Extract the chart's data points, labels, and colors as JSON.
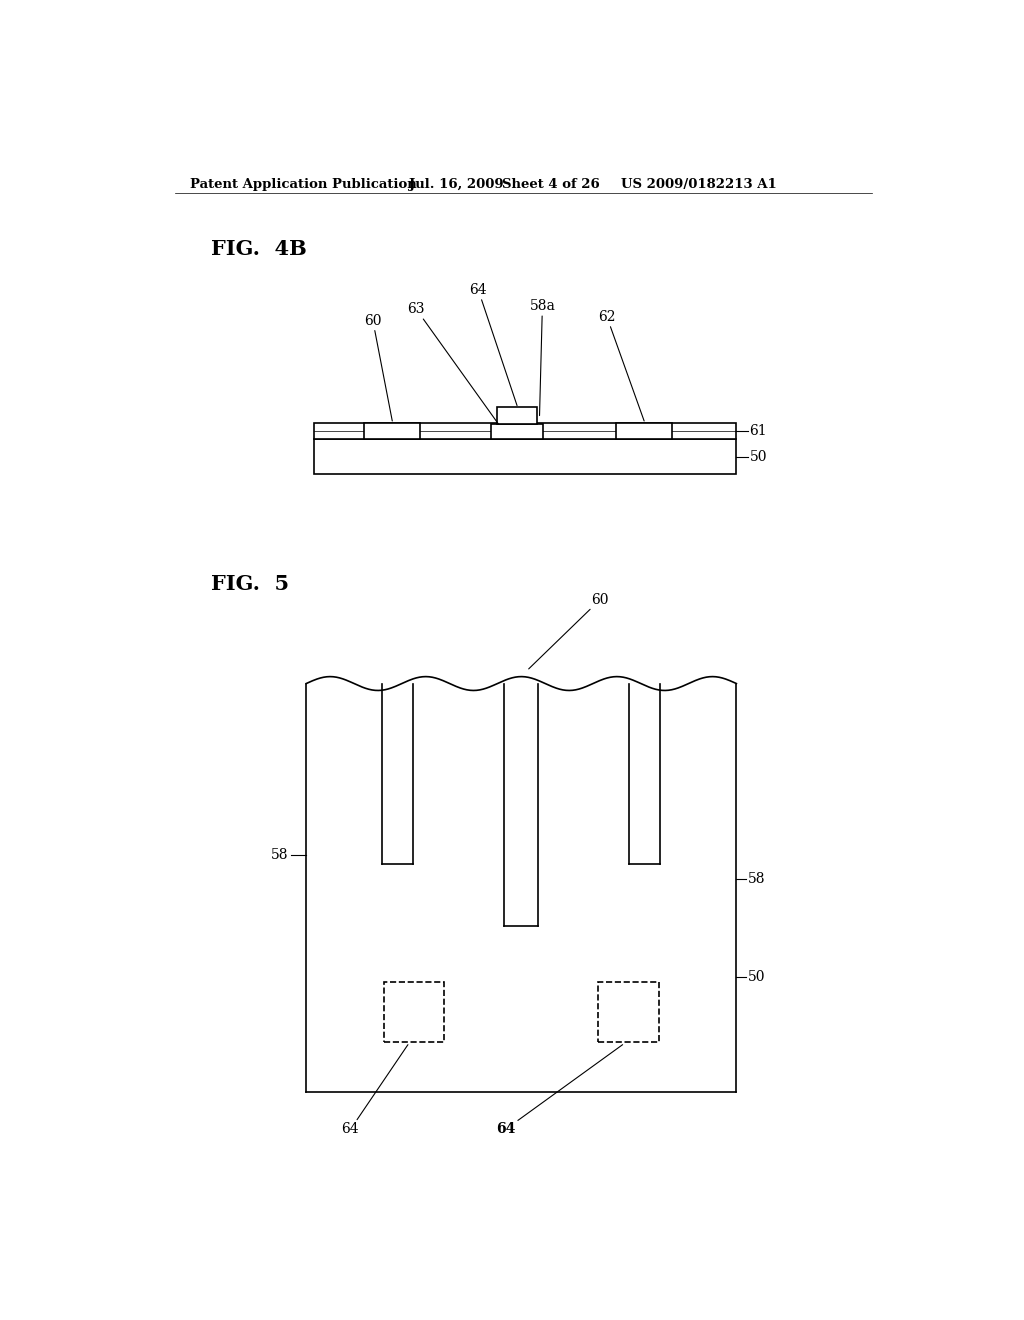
{
  "bg_color": "#ffffff",
  "header_text": "Patent Application Publication",
  "header_date": "Jul. 16, 2009",
  "header_sheet": "Sheet 4 of 26",
  "header_patent": "US 2009/0182213 A1",
  "fig4b_label": "FIG.  4B",
  "fig5_label": "FIG.  5",
  "line_color": "#000000",
  "line_width": 1.2,
  "thin_line": 0.8
}
